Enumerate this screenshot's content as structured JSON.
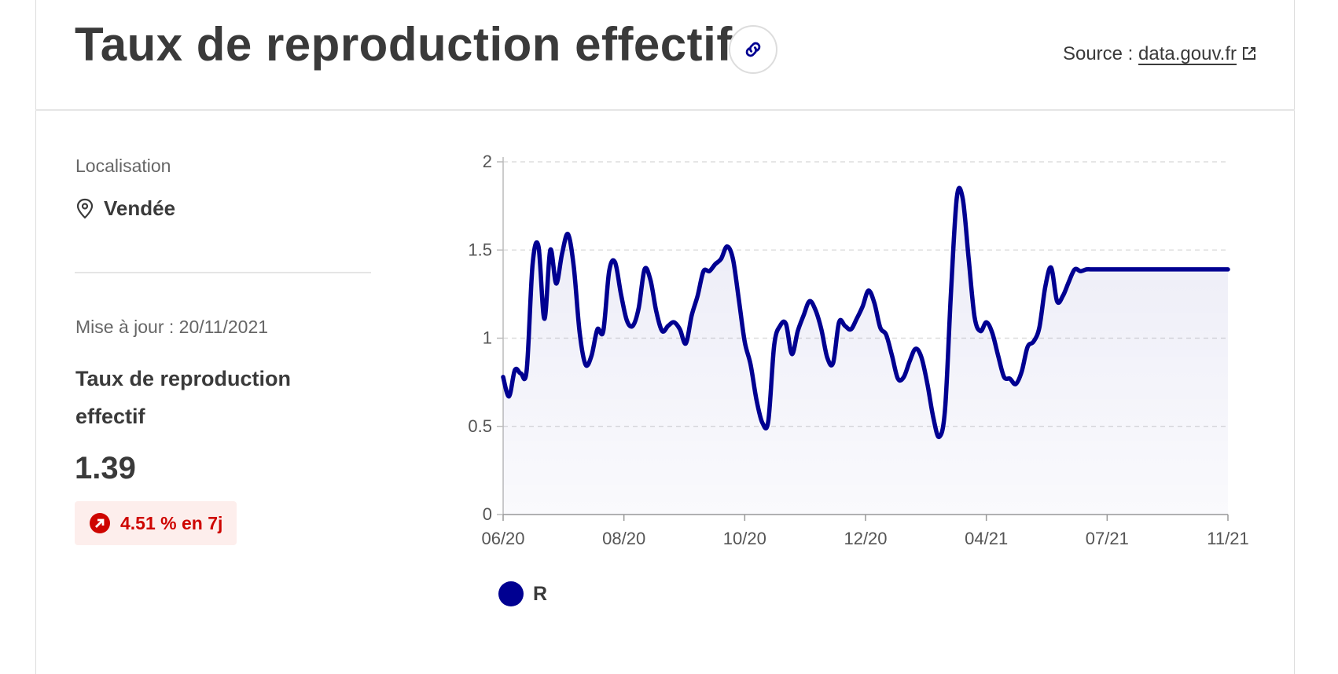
{
  "header": {
    "title": "Taux de reproduction effectif",
    "source_prefix": "Source :",
    "source_link": "data.gouv.fr",
    "link_icon": "link-icon",
    "external_icon": "external-link-icon"
  },
  "sidebar": {
    "location_label": "Localisation",
    "location_value": "Vendée",
    "update_text": "Mise à jour : 20/11/2021",
    "metric_label": "Taux de reproduction effectif",
    "metric_value": "1.39",
    "trend_text": "4.51 % en 7j",
    "trend_icon": "arrow-up-right-icon"
  },
  "colors": {
    "series": "#000091",
    "trend_text": "#ce0500",
    "trend_bg": "#fdeeec"
  },
  "chart_data": {
    "type": "area",
    "x_ticks": [
      "06/20",
      "08/20",
      "10/20",
      "12/20",
      "04/21",
      "07/21",
      "11/21"
    ],
    "y_ticks": [
      "0",
      "0.5",
      "1",
      "1.5",
      "2"
    ],
    "ylim": [
      0,
      2
    ],
    "grid": "horizontal dashed",
    "legend_position": "bottom-left",
    "series": [
      {
        "name": "R",
        "color": "#000091",
        "x_index": [
          0,
          1,
          2,
          3,
          4,
          5,
          6,
          7,
          8,
          9,
          10,
          11,
          12,
          13,
          14,
          15,
          16,
          17,
          18,
          19,
          20,
          21,
          22,
          23,
          24,
          25,
          26,
          27,
          28,
          29,
          30,
          31,
          32,
          33,
          34,
          35,
          36,
          37,
          38,
          39,
          40,
          41,
          42,
          43,
          44,
          45,
          46,
          47,
          48,
          49,
          50,
          51,
          52,
          53,
          54,
          55,
          56,
          57,
          58,
          59,
          60,
          61,
          62,
          63,
          64,
          65,
          66,
          67,
          68,
          69,
          70,
          71,
          72,
          73,
          74,
          75,
          76,
          77,
          78,
          79,
          80,
          81,
          82,
          83,
          84,
          85,
          86,
          87,
          88,
          89,
          90,
          91,
          92,
          93,
          94,
          95,
          96,
          97,
          98,
          99,
          100,
          101,
          102,
          103,
          104,
          105,
          106,
          107,
          108,
          109,
          110,
          111,
          112,
          113,
          114,
          115,
          116,
          117,
          118,
          119,
          120,
          121,
          122,
          123
        ],
        "values": [
          0.78,
          0.67,
          0.82,
          0.8,
          0.82,
          1.42,
          1.52,
          1.11,
          1.5,
          1.31,
          1.48,
          1.59,
          1.4,
          1.03,
          0.85,
          0.9,
          1.05,
          1.04,
          1.38,
          1.43,
          1.25,
          1.1,
          1.07,
          1.17,
          1.39,
          1.33,
          1.15,
          1.04,
          1.07,
          1.09,
          1.05,
          0.97,
          1.13,
          1.24,
          1.38,
          1.38,
          1.42,
          1.45,
          1.52,
          1.45,
          1.22,
          0.98,
          0.85,
          0.65,
          0.52,
          0.53,
          0.96,
          1.07,
          1.08,
          0.91,
          1.04,
          1.13,
          1.21,
          1.16,
          1.05,
          0.89,
          0.86,
          1.09,
          1.07,
          1.05,
          1.11,
          1.18,
          1.27,
          1.2,
          1.06,
          1.02,
          0.9,
          0.77,
          0.78,
          0.87,
          0.94,
          0.89,
          0.74,
          0.55,
          0.44,
          0.6,
          1.26,
          1.8,
          1.79,
          1.45,
          1.12,
          1.04,
          1.09,
          1.03,
          0.9,
          0.78,
          0.77,
          0.74,
          0.81,
          0.95,
          0.98,
          1.06,
          1.29,
          1.4,
          1.21,
          1.24,
          1.32,
          1.39,
          1.38,
          1.39,
          1.39,
          1.39,
          1.39,
          1.39,
          1.39,
          1.39,
          1.39,
          1.39,
          1.39,
          1.39,
          1.39,
          1.39,
          1.39,
          1.39,
          1.39,
          1.39,
          1.39,
          1.39,
          1.39,
          1.39,
          1.39,
          1.39,
          1.39,
          1.39
        ]
      }
    ]
  }
}
